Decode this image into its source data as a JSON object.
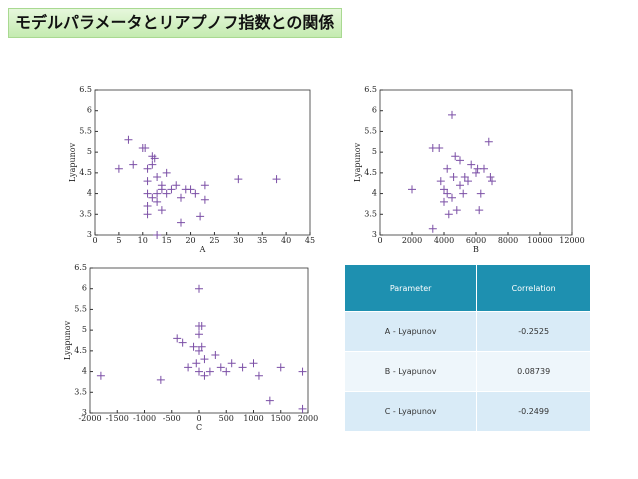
{
  "title": "モデルパラメータとリアプノフ指数との関係",
  "chart_data": [
    {
      "type": "scatter",
      "xlabel": "A",
      "ylabel": "Lyapunov",
      "color": "#7b4fa6",
      "xlim": [
        0,
        45
      ],
      "xticks": [
        0,
        5,
        10,
        15,
        20,
        25,
        30,
        35,
        40,
        45
      ],
      "ylim": [
        3,
        6.5
      ],
      "yticks": [
        3,
        3.5,
        4,
        4.5,
        5,
        5.5,
        6,
        6.5
      ],
      "x": [
        5,
        7,
        8,
        10,
        10.5,
        11,
        11,
        11,
        11,
        11,
        12,
        12,
        12.5,
        13,
        13,
        13,
        13,
        14,
        14,
        15,
        15,
        16,
        17,
        18,
        18,
        19,
        20,
        21,
        22,
        23,
        23,
        30,
        38,
        12,
        14
      ],
      "values": [
        4.6,
        5.3,
        4.7,
        5.1,
        5.1,
        4.6,
        4.3,
        4.0,
        3.7,
        3.5,
        4.9,
        4.7,
        4.85,
        4.4,
        4.0,
        3.8,
        3.0,
        4.1,
        3.6,
        4.5,
        4.0,
        4.1,
        4.2,
        3.9,
        3.3,
        4.1,
        4.1,
        4.0,
        3.45,
        4.2,
        3.85,
        4.35,
        4.35,
        3.9,
        4.2
      ]
    },
    {
      "type": "scatter",
      "xlabel": "B",
      "ylabel": "Lyapunov",
      "color": "#7b4fa6",
      "xlim": [
        0,
        12000
      ],
      "xticks": [
        0,
        2000,
        4000,
        6000,
        8000,
        10000,
        12000
      ],
      "ylim": [
        3,
        6.5
      ],
      "yticks": [
        3,
        3.5,
        4,
        4.5,
        5,
        5.5,
        6,
        6.5
      ],
      "x": [
        2000,
        3300,
        3300,
        3700,
        3800,
        4000,
        4000,
        4200,
        4200,
        4300,
        4500,
        4600,
        4700,
        4800,
        5000,
        5200,
        5300,
        5500,
        5700,
        6000,
        6100,
        6200,
        6300,
        6500,
        6800,
        6900,
        7000,
        5000,
        4500
      ],
      "values": [
        4.1,
        3.15,
        5.1,
        5.1,
        4.3,
        4.1,
        3.8,
        4.6,
        4.0,
        3.5,
        5.9,
        4.4,
        4.9,
        3.6,
        4.2,
        4.0,
        4.4,
        4.3,
        4.7,
        4.5,
        4.6,
        3.6,
        4.0,
        4.6,
        5.25,
        4.4,
        4.3,
        4.8,
        3.9
      ]
    },
    {
      "type": "scatter",
      "xlabel": "C",
      "ylabel": "Lyapunov",
      "color": "#7b4fa6",
      "xlim": [
        -2000,
        2000
      ],
      "xticks": [
        -2000,
        -1500,
        -1000,
        -500,
        0,
        500,
        1000,
        1500,
        2000
      ],
      "ylim": [
        3,
        6.5
      ],
      "yticks": [
        3,
        3.5,
        4,
        4.5,
        5,
        5.5,
        6,
        6.5
      ],
      "x": [
        -1800,
        -700,
        -400,
        -300,
        -100,
        0,
        0,
        0,
        0,
        -50,
        0,
        50,
        100,
        100,
        200,
        300,
        400,
        500,
        600,
        800,
        1000,
        1100,
        1300,
        1500,
        1900,
        1900,
        -200,
        50
      ],
      "values": [
        3.9,
        3.8,
        4.8,
        4.7,
        4.6,
        6.0,
        5.1,
        4.9,
        4.5,
        4.2,
        4.0,
        5.1,
        4.3,
        3.9,
        4.0,
        4.4,
        4.1,
        4.0,
        4.2,
        4.1,
        4.2,
        3.9,
        3.3,
        4.1,
        4.0,
        3.1,
        4.1,
        4.6
      ]
    }
  ],
  "table": {
    "header": [
      "Parameter",
      "Correlation"
    ],
    "rows": [
      [
        "A - Lyapunov",
        -0.2525
      ],
      [
        "B - Lyapunov",
        0.08739
      ],
      [
        "C - Lyapunov",
        -0.2499
      ]
    ]
  }
}
